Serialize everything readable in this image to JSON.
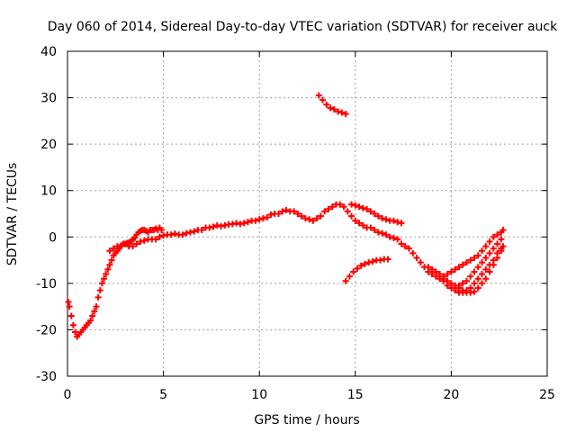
{
  "chart_data": {
    "type": "scatter",
    "title": "Day 060 of 2014, Sidereal Day-to-day VTEC variation (SDTVAR) for receiver auck",
    "xlabel": "GPS time / hours",
    "ylabel": "SDTVAR / TECUs",
    "xlim": [
      0,
      25
    ],
    "ylim": [
      -30,
      40
    ],
    "xticks": [
      0,
      5,
      10,
      15,
      20,
      25
    ],
    "yticks": [
      -30,
      -20,
      -10,
      0,
      10,
      20,
      30,
      40
    ],
    "x_tick_labels": [
      "0",
      "5",
      "10",
      "15",
      "20",
      "25"
    ],
    "y_tick_labels": [
      "-30",
      "-20",
      "-10",
      "0",
      "10",
      "20",
      "30",
      "40"
    ],
    "grid": true,
    "marker": "+",
    "series": [
      {
        "name": "main",
        "color": "#ff0000",
        "points": [
          [
            0.05,
            -14
          ],
          [
            0.1,
            -15
          ],
          [
            0.2,
            -17
          ],
          [
            0.3,
            -19
          ],
          [
            0.4,
            -20.5
          ],
          [
            0.5,
            -21.5
          ],
          [
            0.6,
            -21
          ],
          [
            0.7,
            -20.5
          ],
          [
            0.8,
            -20
          ],
          [
            0.9,
            -19.5
          ],
          [
            1.0,
            -19
          ],
          [
            1.1,
            -18.5
          ],
          [
            1.2,
            -18
          ],
          [
            1.3,
            -17
          ],
          [
            1.4,
            -16
          ],
          [
            1.5,
            -15
          ],
          [
            1.6,
            -13
          ],
          [
            1.7,
            -11.5
          ],
          [
            1.8,
            -10
          ],
          [
            1.9,
            -9
          ],
          [
            2.0,
            -8
          ],
          [
            2.1,
            -7
          ],
          [
            2.2,
            -6
          ],
          [
            2.3,
            -5
          ],
          [
            2.4,
            -4
          ],
          [
            2.5,
            -3.5
          ],
          [
            2.6,
            -3
          ],
          [
            2.7,
            -2.5
          ],
          [
            2.8,
            -2
          ],
          [
            2.9,
            -1.5
          ],
          [
            3.0,
            -1.5
          ],
          [
            3.1,
            -1.3
          ],
          [
            3.2,
            -1.2
          ],
          [
            3.3,
            -1
          ],
          [
            3.4,
            -0.5
          ],
          [
            3.5,
            -0.2
          ],
          [
            3.6,
            0.5
          ],
          [
            3.7,
            1
          ],
          [
            3.8,
            1.3
          ],
          [
            3.9,
            1.5
          ],
          [
            4.0,
            1.5
          ],
          [
            4.1,
            1.3
          ],
          [
            4.2,
            1
          ],
          [
            4.3,
            1.5
          ],
          [
            4.4,
            1.5
          ],
          [
            4.5,
            1.5
          ],
          [
            4.6,
            1.8
          ],
          [
            4.7,
            1.5
          ],
          [
            4.8,
            2
          ],
          [
            4.9,
            1.5
          ],
          [
            5.0,
            0.3
          ],
          [
            5.2,
            0.5
          ],
          [
            5.4,
            0.5
          ],
          [
            5.6,
            0.7
          ],
          [
            5.8,
            0.5
          ],
          [
            6.0,
            0.5
          ],
          [
            6.2,
            0.8
          ],
          [
            6.4,
            1
          ],
          [
            6.6,
            1.2
          ],
          [
            6.8,
            1.5
          ],
          [
            7.0,
            1.5
          ],
          [
            7.2,
            2
          ],
          [
            7.4,
            2
          ],
          [
            7.6,
            2.2
          ],
          [
            7.8,
            2.5
          ],
          [
            8.0,
            2.3
          ],
          [
            8.2,
            2.5
          ],
          [
            8.4,
            2.7
          ],
          [
            8.6,
            2.8
          ],
          [
            8.8,
            3
          ],
          [
            9.0,
            2.8
          ],
          [
            9.2,
            3
          ],
          [
            9.4,
            3.2
          ],
          [
            9.6,
            3.5
          ],
          [
            9.8,
            3.5
          ],
          [
            10.0,
            3.8
          ],
          [
            10.2,
            4
          ],
          [
            10.4,
            4.2
          ],
          [
            10.6,
            4.8
          ],
          [
            10.8,
            5
          ],
          [
            11.0,
            5
          ],
          [
            11.2,
            5.5
          ],
          [
            11.4,
            5.8
          ],
          [
            11.6,
            5.5
          ],
          [
            11.8,
            5.5
          ],
          [
            12.0,
            5
          ],
          [
            12.2,
            4.5
          ],
          [
            12.4,
            4
          ],
          [
            12.6,
            3.8
          ],
          [
            12.8,
            3.5
          ],
          [
            13.0,
            4
          ],
          [
            13.2,
            4.5
          ],
          [
            13.4,
            5.5
          ],
          [
            13.6,
            6
          ],
          [
            13.8,
            6.5
          ],
          [
            14.0,
            7
          ],
          [
            14.2,
            7
          ],
          [
            14.4,
            6.5
          ],
          [
            14.6,
            5.5
          ],
          [
            14.8,
            4.5
          ],
          [
            15.0,
            3.5
          ],
          [
            15.2,
            3
          ],
          [
            15.4,
            2.5
          ],
          [
            15.6,
            2
          ],
          [
            15.8,
            2
          ],
          [
            16.0,
            1.5
          ],
          [
            16.2,
            1
          ],
          [
            16.4,
            0.8
          ],
          [
            16.6,
            0.5
          ],
          [
            16.8,
            0
          ],
          [
            17.0,
            -0.2
          ],
          [
            17.2,
            -0.5
          ],
          [
            17.4,
            -1.5
          ],
          [
            17.6,
            -2
          ],
          [
            17.8,
            -2.5
          ],
          [
            18.0,
            -3.5
          ],
          [
            18.2,
            -4.5
          ],
          [
            18.4,
            -5.5
          ],
          [
            18.6,
            -6.5
          ],
          [
            18.8,
            -7.5
          ],
          [
            19.0,
            -8
          ],
          [
            19.2,
            -8.5
          ],
          [
            19.4,
            -9
          ],
          [
            19.6,
            -9.5
          ],
          [
            19.8,
            -10.5
          ],
          [
            20.0,
            -11
          ],
          [
            20.2,
            -11.5
          ],
          [
            20.4,
            -12
          ],
          [
            20.6,
            -12
          ],
          [
            20.8,
            -12
          ],
          [
            21.0,
            -12
          ],
          [
            21.2,
            -11.8
          ],
          [
            21.4,
            -11
          ],
          [
            21.6,
            -10
          ],
          [
            21.8,
            -9
          ],
          [
            22.0,
            -7.5
          ],
          [
            22.2,
            -6
          ],
          [
            22.4,
            -4.5
          ],
          [
            22.6,
            -3
          ],
          [
            22.7,
            -2
          ]
        ]
      },
      {
        "name": "lower-track",
        "color": "#ff0000",
        "points": [
          [
            2.2,
            -3
          ],
          [
            2.4,
            -2.5
          ],
          [
            2.6,
            -2
          ],
          [
            2.8,
            -1.8
          ],
          [
            3.0,
            -1.5
          ],
          [
            3.2,
            -2
          ],
          [
            3.4,
            -2
          ],
          [
            3.6,
            -1.5
          ],
          [
            3.8,
            -1
          ],
          [
            4.0,
            -0.8
          ],
          [
            4.2,
            -0.5
          ],
          [
            4.4,
            -0.5
          ],
          [
            4.6,
            -0.5
          ],
          [
            4.8,
            0
          ]
        ]
      },
      {
        "name": "right-tracks",
        "color": "#ff0000",
        "points": [
          [
            18.8,
            -6.5
          ],
          [
            19.0,
            -7
          ],
          [
            19.2,
            -7.5
          ],
          [
            19.4,
            -8
          ],
          [
            19.6,
            -8.5
          ],
          [
            19.8,
            -8
          ],
          [
            20.0,
            -7.5
          ],
          [
            20.2,
            -7
          ],
          [
            20.4,
            -6.5
          ],
          [
            20.6,
            -6
          ],
          [
            20.8,
            -5.5
          ],
          [
            21.0,
            -5
          ],
          [
            21.2,
            -4.5
          ],
          [
            21.4,
            -4
          ],
          [
            21.6,
            -3
          ],
          [
            21.8,
            -2
          ],
          [
            22.0,
            -1
          ],
          [
            22.2,
            0
          ],
          [
            22.4,
            0.5
          ],
          [
            22.6,
            1
          ],
          [
            22.7,
            1.5
          ],
          [
            19.6,
            -9
          ],
          [
            19.8,
            -9.5
          ],
          [
            20.0,
            -10
          ],
          [
            20.2,
            -10.5
          ],
          [
            20.4,
            -10.5
          ],
          [
            20.6,
            -10
          ],
          [
            20.8,
            -9.5
          ],
          [
            21.0,
            -8.5
          ],
          [
            21.2,
            -7.5
          ],
          [
            21.4,
            -6.5
          ],
          [
            21.6,
            -5.5
          ],
          [
            21.8,
            -4.5
          ],
          [
            22.0,
            -3.5
          ],
          [
            22.2,
            -2.5
          ],
          [
            22.4,
            -1.5
          ],
          [
            22.6,
            -0.5
          ],
          [
            20.4,
            -11
          ],
          [
            20.6,
            -11.5
          ],
          [
            20.8,
            -11.5
          ],
          [
            21.0,
            -11
          ],
          [
            21.2,
            -10
          ],
          [
            21.4,
            -9
          ],
          [
            21.6,
            -8
          ],
          [
            21.8,
            -7
          ],
          [
            22.0,
            -6
          ],
          [
            22.2,
            -5
          ],
          [
            22.4,
            -3.5
          ],
          [
            22.6,
            -2.5
          ]
        ]
      },
      {
        "name": "upper-track-15",
        "color": "#ff0000",
        "points": [
          [
            14.8,
            7
          ],
          [
            15.0,
            6.8
          ],
          [
            15.2,
            6.5
          ],
          [
            15.4,
            6.2
          ],
          [
            15.6,
            6
          ],
          [
            15.8,
            5.5
          ],
          [
            16.0,
            5
          ],
          [
            16.2,
            4.5
          ],
          [
            16.4,
            4
          ],
          [
            16.6,
            3.8
          ],
          [
            16.8,
            3.5
          ],
          [
            17.0,
            3.5
          ],
          [
            17.2,
            3.2
          ],
          [
            17.4,
            3
          ]
        ]
      },
      {
        "name": "upper-track-13",
        "color": "#ff0000",
        "points": [
          [
            13.1,
            30.5
          ],
          [
            13.3,
            29.5
          ],
          [
            13.5,
            28.5
          ],
          [
            13.7,
            27.8
          ],
          [
            13.9,
            27.5
          ],
          [
            14.1,
            27
          ],
          [
            14.3,
            26.8
          ],
          [
            14.5,
            26.5
          ]
        ]
      },
      {
        "name": "mid-track-15",
        "color": "#ff0000",
        "points": [
          [
            14.5,
            -9.5
          ],
          [
            14.7,
            -8.5
          ],
          [
            14.9,
            -7.5
          ],
          [
            15.1,
            -6.8
          ],
          [
            15.3,
            -6.2
          ],
          [
            15.5,
            -5.8
          ],
          [
            15.7,
            -5.5
          ],
          [
            15.9,
            -5.3
          ],
          [
            16.1,
            -5
          ],
          [
            16.3,
            -5
          ],
          [
            16.5,
            -4.8
          ],
          [
            16.7,
            -4.8
          ]
        ]
      }
    ]
  }
}
